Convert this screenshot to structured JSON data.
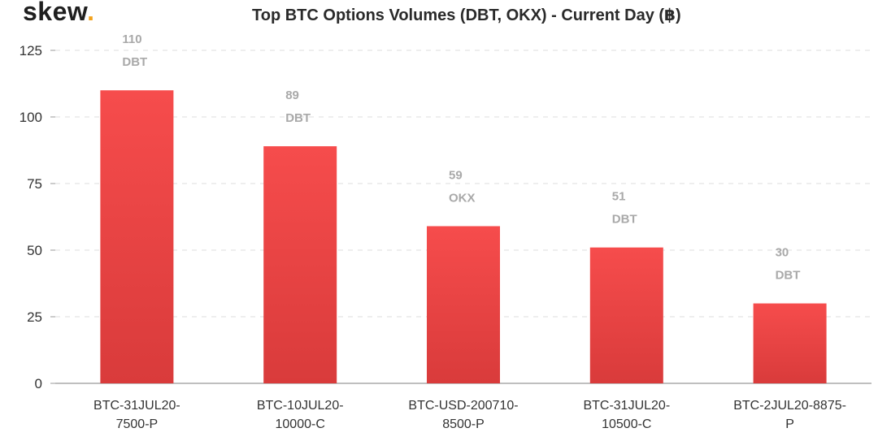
{
  "logo": {
    "text": "skew",
    "dot": "."
  },
  "chart_data": {
    "type": "bar",
    "title": "Top BTC Options Volumes (DBT, OKX) - Current Day (฿)",
    "categories": [
      [
        "BTC-31JUL20-",
        "7500-P"
      ],
      [
        "BTC-10JUL20-",
        "10000-C"
      ],
      [
        "BTC-USD-200710-",
        "8500-P"
      ],
      [
        "BTC-31JUL20-",
        "10500-C"
      ],
      [
        "BTC-2JUL20-8875-",
        "P"
      ]
    ],
    "values": [
      110,
      89,
      59,
      51,
      30
    ],
    "value_labels": [
      "110",
      "89",
      "59",
      "51",
      "30"
    ],
    "exchanges": [
      "DBT",
      "DBT",
      "OKX",
      "DBT",
      "DBT"
    ],
    "ylim": [
      0,
      125
    ],
    "yticks": [
      0,
      25,
      50,
      75,
      100,
      125
    ],
    "grid": true,
    "colors": {
      "bar_top": "#f64c4c",
      "bar_bottom": "#d93b3b",
      "grid": "#dddddd",
      "axis": "#999999",
      "label": "#a9a9a9"
    }
  }
}
